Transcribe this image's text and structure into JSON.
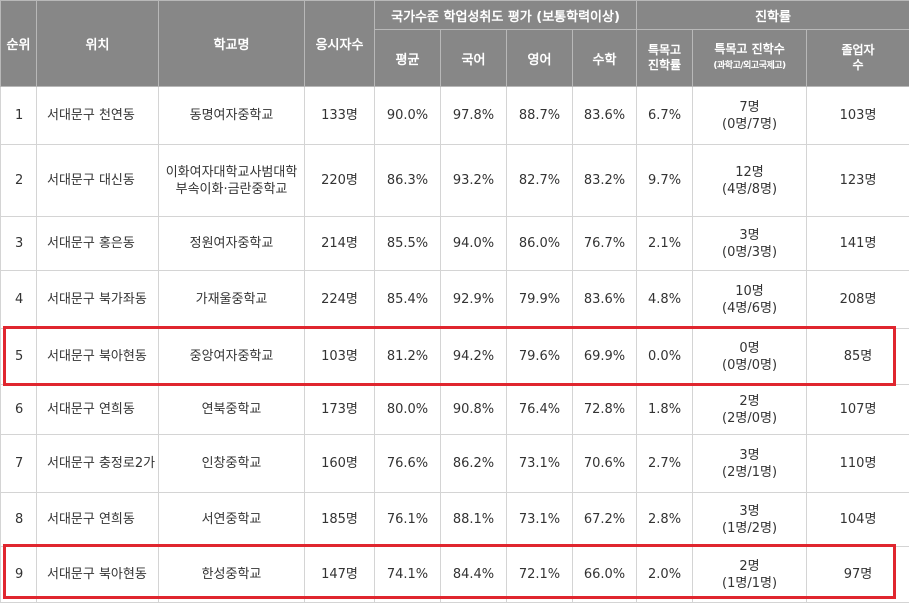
{
  "header": {
    "rank": "순위",
    "location": "위치",
    "school": "학교명",
    "examinees": "응시자수",
    "assessment_group": "국가수준 학업성취도 평가 (보통학력이상)",
    "average": "평균",
    "korean": "국어",
    "english": "영어",
    "math": "수학",
    "advancement_group": "진학률",
    "special_rate_l1": "특목고",
    "special_rate_l2": "진학률",
    "special_count": "특목고 진학수",
    "special_count_sub": "(과학고/외고국제고)",
    "graduates_l1": "졸업자",
    "graduates_l2": "수"
  },
  "rows": [
    {
      "rank": "1",
      "location": "서대문구 천연동",
      "school": "동명여자중학교",
      "examinees": "133명",
      "average": "90.0%",
      "korean": "97.8%",
      "english": "88.7%",
      "math": "83.6%",
      "special_rate": "6.7%",
      "special_count": "7명",
      "special_breakdown": "(0명/7명)",
      "graduates": "103명",
      "highlight": false
    },
    {
      "rank": "2",
      "location": "서대문구 대신동",
      "school": "이화여자대학교사범대학부속이화·금란중학교",
      "examinees": "220명",
      "average": "86.3%",
      "korean": "93.2%",
      "english": "82.7%",
      "math": "83.2%",
      "special_rate": "9.7%",
      "special_count": "12명",
      "special_breakdown": "(4명/8명)",
      "graduates": "123명",
      "highlight": false
    },
    {
      "rank": "3",
      "location": "서대문구 홍은동",
      "school": "정원여자중학교",
      "examinees": "214명",
      "average": "85.5%",
      "korean": "94.0%",
      "english": "86.0%",
      "math": "76.7%",
      "special_rate": "2.1%",
      "special_count": "3명",
      "special_breakdown": "(0명/3명)",
      "graduates": "141명",
      "highlight": false
    },
    {
      "rank": "4",
      "location": "서대문구 북가좌동",
      "school": "가재울중학교",
      "examinees": "224명",
      "average": "85.4%",
      "korean": "92.9%",
      "english": "79.9%",
      "math": "83.6%",
      "special_rate": "4.8%",
      "special_count": "10명",
      "special_breakdown": "(4명/6명)",
      "graduates": "208명",
      "highlight": false
    },
    {
      "rank": "5",
      "location": "서대문구 북아현동",
      "school": "중앙여자중학교",
      "examinees": "103명",
      "average": "81.2%",
      "korean": "94.2%",
      "english": "79.6%",
      "math": "69.9%",
      "special_rate": "0.0%",
      "special_count": "0명",
      "special_breakdown": "(0명/0명)",
      "graduates": "85명",
      "highlight": true
    },
    {
      "rank": "6",
      "location": "서대문구 연희동",
      "school": "연북중학교",
      "examinees": "173명",
      "average": "80.0%",
      "korean": "90.8%",
      "english": "76.4%",
      "math": "72.8%",
      "special_rate": "1.8%",
      "special_count": "2명",
      "special_breakdown": "(2명/0명)",
      "graduates": "107명",
      "highlight": false
    },
    {
      "rank": "7",
      "location": "서대문구 충정로2가",
      "school": "인창중학교",
      "examinees": "160명",
      "average": "76.6%",
      "korean": "86.2%",
      "english": "73.1%",
      "math": "70.6%",
      "special_rate": "2.7%",
      "special_count": "3명",
      "special_breakdown": "(2명/1명)",
      "graduates": "110명",
      "highlight": false
    },
    {
      "rank": "8",
      "location": "서대문구 연희동",
      "school": "서연중학교",
      "examinees": "185명",
      "average": "76.1%",
      "korean": "88.1%",
      "english": "73.1%",
      "math": "67.2%",
      "special_rate": "2.8%",
      "special_count": "3명",
      "special_breakdown": "(1명/2명)",
      "graduates": "104명",
      "highlight": false
    },
    {
      "rank": "9",
      "location": "서대문구 북아현동",
      "school": "한성중학교",
      "examinees": "147명",
      "average": "74.1%",
      "korean": "84.4%",
      "english": "72.1%",
      "math": "66.0%",
      "special_rate": "2.0%",
      "special_count": "2명",
      "special_breakdown": "(1명/1명)",
      "graduates": "97명",
      "highlight": true
    }
  ],
  "colors": {
    "header_bg": "#878787",
    "highlight_border": "#e0262f",
    "grid": "#d4d4d4"
  }
}
